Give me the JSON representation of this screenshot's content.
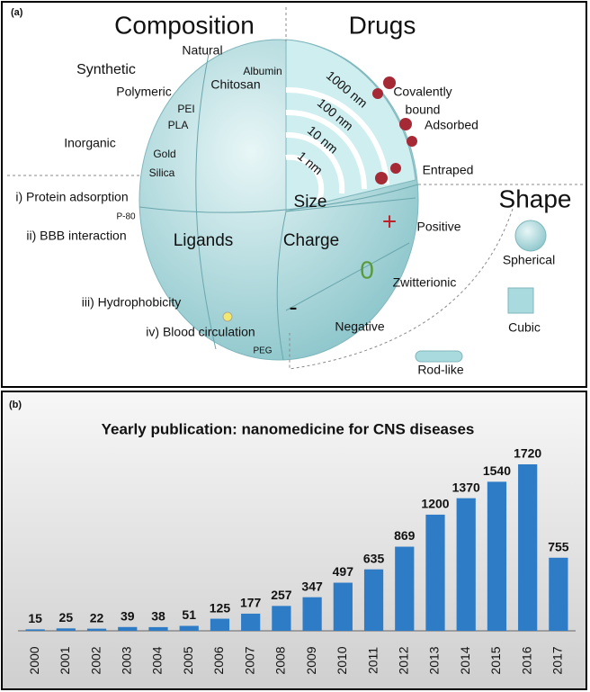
{
  "panel_a": {
    "label": "(a)",
    "texts": [
      "Composition",
      "Drugs",
      "Natural",
      "Synthetic",
      "Albumin",
      "Chitosan",
      "Polymeric",
      "PEI",
      "PLA",
      "Inorganic",
      "Gold",
      "Silica",
      "1000 nm",
      "100 nm",
      "10 nm",
      "1 nm",
      "Covalently",
      "bound",
      "Adsorbed",
      "Entraped",
      "Size",
      "Shape",
      "i) Protein adsorption",
      "P-80",
      "ii) BBB interaction",
      "Ligands",
      "Charge",
      "+",
      "Positive",
      "Spherical",
      "0",
      "Zwitterionic",
      "iii) Hydrophobicity",
      "-",
      "Cubic",
      "Negative",
      "iv) Blood circulation",
      "PEG",
      "Rod-like"
    ]
  },
  "chart_data": {
    "type": "bar",
    "panel_label": "(b)",
    "title": "Yearly publication: nanomedicine for CNS diseases",
    "categories": [
      "2000",
      "2001",
      "2002",
      "2003",
      "2004",
      "2005",
      "2006",
      "2007",
      "2008",
      "2009",
      "2010",
      "2011",
      "2012",
      "2013",
      "2014",
      "2015",
      "2016",
      "2017"
    ],
    "values": [
      15,
      25,
      22,
      39,
      38,
      51,
      125,
      177,
      257,
      347,
      497,
      635,
      869,
      1200,
      1370,
      1540,
      1720,
      755
    ],
    "color": "#2f7cc6"
  }
}
